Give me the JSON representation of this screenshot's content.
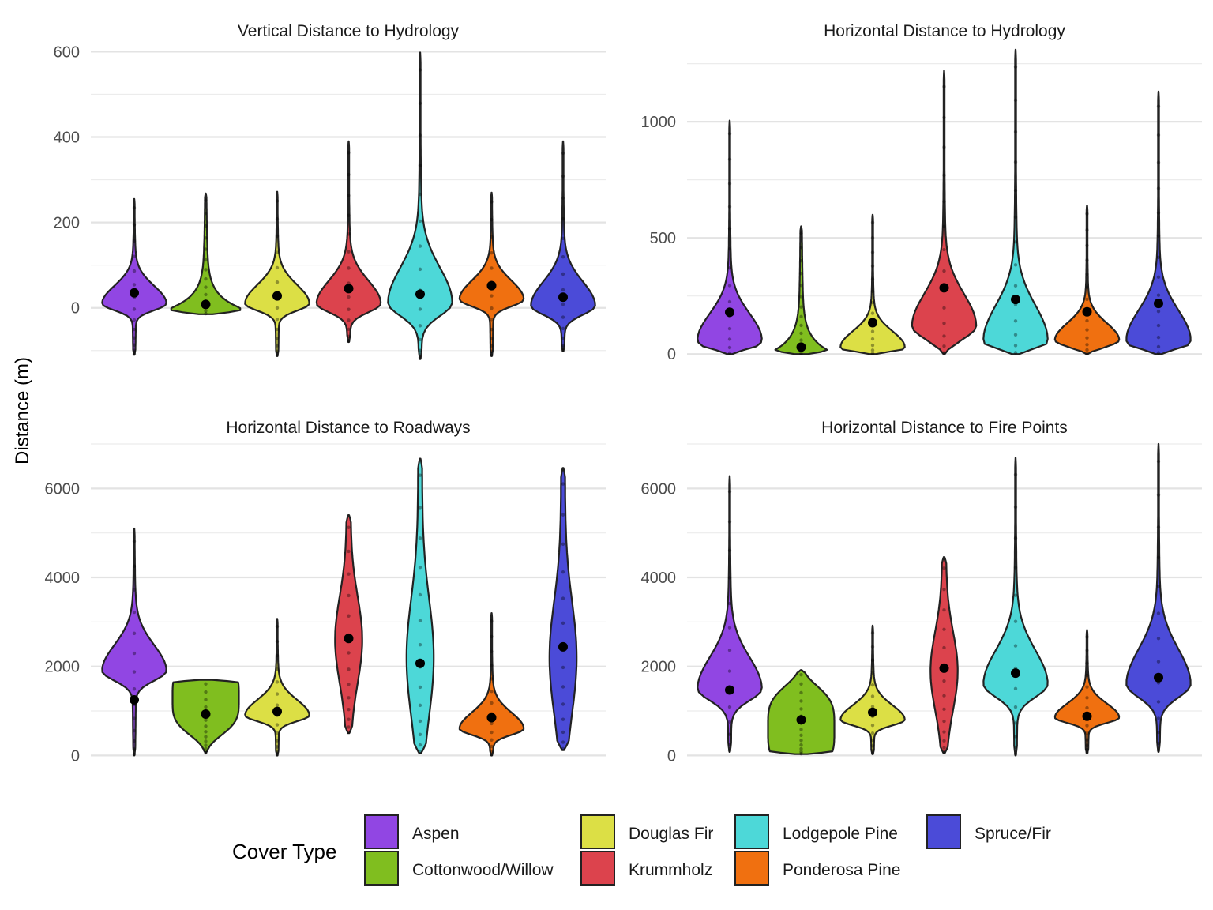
{
  "figure": {
    "y_axis_title": "Distance (m)",
    "legend_title": "Cover Type"
  },
  "legend": {
    "items": [
      {
        "name": "Aspen",
        "color": "#9146E3"
      },
      {
        "name": "Cottonwood/Willow",
        "color": "#80BE1F"
      },
      {
        "name": "Douglas Fir",
        "color": "#DCDF45"
      },
      {
        "name": "Krummholz",
        "color": "#DC434D"
      },
      {
        "name": "Lodgepole Pine",
        "color": "#4DD8D8"
      },
      {
        "name": "Ponderosa Pine",
        "color": "#F07010"
      },
      {
        "name": "Spruce/Fir",
        "color": "#4B4BD8"
      }
    ]
  },
  "chart_data": [
    {
      "type": "violin",
      "title": "Vertical Distance to Hydrology",
      "ylim": [
        -130,
        610
      ],
      "yticks": [
        0,
        200,
        400,
        600
      ],
      "grid": true,
      "categories": [
        "Aspen",
        "Cottonwood/Willow",
        "Douglas Fir",
        "Krummholz",
        "Lodgepole Pine",
        "Ponderosa Pine",
        "Spruce/Fir"
      ],
      "series": [
        {
          "name": "Aspen",
          "min": -110,
          "max": 255,
          "mean": 35,
          "peak": 10,
          "shape": "skew"
        },
        {
          "name": "Cottonwood/Willow",
          "min": -15,
          "max": 268,
          "mean": 8,
          "peak": 0,
          "shape": "flat"
        },
        {
          "name": "Douglas Fir",
          "min": -113,
          "max": 272,
          "mean": 28,
          "peak": 10,
          "shape": "skew"
        },
        {
          "name": "Krummholz",
          "min": -80,
          "max": 390,
          "mean": 45,
          "peak": 10,
          "shape": "skew"
        },
        {
          "name": "Lodgepole Pine",
          "min": -120,
          "max": 598,
          "mean": 32,
          "peak": 12,
          "shape": "skew"
        },
        {
          "name": "Ponderosa Pine",
          "min": -113,
          "max": 270,
          "mean": 52,
          "peak": 20,
          "shape": "skew"
        },
        {
          "name": "Spruce/Fir",
          "min": -102,
          "max": 390,
          "mean": 25,
          "peak": 5,
          "shape": "skew"
        }
      ]
    },
    {
      "type": "violin",
      "title": "Horizontal Distance to Hydrology",
      "ylim": [
        -40,
        1320
      ],
      "yticks": [
        0,
        500,
        1000
      ],
      "grid": true,
      "categories": [
        "Aspen",
        "Cottonwood/Willow",
        "Douglas Fir",
        "Krummholz",
        "Lodgepole Pine",
        "Ponderosa Pine",
        "Spruce/Fir"
      ],
      "series": [
        {
          "name": "Aspen",
          "min": 0,
          "max": 1005,
          "mean": 180,
          "peak": 60,
          "shape": "skew"
        },
        {
          "name": "Cottonwood/Willow",
          "min": 0,
          "max": 550,
          "mean": 30,
          "peak": 0,
          "shape": "flat"
        },
        {
          "name": "Douglas Fir",
          "min": 0,
          "max": 600,
          "mean": 135,
          "peak": 30,
          "shape": "skew"
        },
        {
          "name": "Krummholz",
          "min": 0,
          "max": 1220,
          "mean": 285,
          "peak": 120,
          "shape": "skew"
        },
        {
          "name": "Lodgepole Pine",
          "min": 0,
          "max": 1310,
          "mean": 235,
          "peak": 60,
          "shape": "skew"
        },
        {
          "name": "Ponderosa Pine",
          "min": 0,
          "max": 640,
          "mean": 182,
          "peak": 60,
          "shape": "skew"
        },
        {
          "name": "Spruce/Fir",
          "min": 0,
          "max": 1130,
          "mean": 218,
          "peak": 60,
          "shape": "skew"
        }
      ]
    },
    {
      "type": "violin",
      "title": "Horizontal Distance to Roadways",
      "ylim": [
        -100,
        7000
      ],
      "yticks": [
        0,
        2000,
        4000,
        6000
      ],
      "grid": true,
      "categories": [
        "Aspen",
        "Cottonwood/Willow",
        "Douglas Fir",
        "Krummholz",
        "Lodgepole Pine",
        "Ponderosa Pine",
        "Spruce/Fir"
      ],
      "series": [
        {
          "name": "Aspen",
          "min": 0,
          "max": 5100,
          "mean": 1250,
          "peak": 1900,
          "shape": "skew"
        },
        {
          "name": "Cottonwood/Willow",
          "min": 50,
          "max": 1700,
          "mean": 930,
          "peak": 1300,
          "shape": "round"
        },
        {
          "name": "Douglas Fir",
          "min": 0,
          "max": 3070,
          "mean": 990,
          "peak": 900,
          "shape": "skew"
        },
        {
          "name": "Krummholz",
          "min": 500,
          "max": 5400,
          "mean": 2630,
          "peak": 2600,
          "shape": "spindle"
        },
        {
          "name": "Lodgepole Pine",
          "min": 50,
          "max": 6670,
          "mean": 2070,
          "peak": 2200,
          "shape": "spindle"
        },
        {
          "name": "Ponderosa Pine",
          "min": 0,
          "max": 3200,
          "mean": 850,
          "peak": 600,
          "shape": "skew"
        },
        {
          "name": "Spruce/Fir",
          "min": 120,
          "max": 6460,
          "mean": 2440,
          "peak": 2200,
          "shape": "spindle"
        }
      ]
    },
    {
      "type": "violin",
      "title": "Horizontal Distance to Fire Points",
      "ylim": [
        -100,
        7000
      ],
      "yticks": [
        0,
        2000,
        4000,
        6000
      ],
      "grid": true,
      "categories": [
        "Aspen",
        "Cottonwood/Willow",
        "Douglas Fir",
        "Krummholz",
        "Lodgepole Pine",
        "Ponderosa Pine",
        "Spruce/Fir"
      ],
      "series": [
        {
          "name": "Aspen",
          "min": 80,
          "max": 6280,
          "mean": 1470,
          "peak": 1500,
          "shape": "skew"
        },
        {
          "name": "Cottonwood/Willow",
          "min": 30,
          "max": 1920,
          "mean": 800,
          "peak": 600,
          "shape": "round"
        },
        {
          "name": "Douglas Fir",
          "min": 30,
          "max": 2920,
          "mean": 970,
          "peak": 800,
          "shape": "skew"
        },
        {
          "name": "Krummholz",
          "min": 50,
          "max": 4460,
          "mean": 1960,
          "peak": 1900,
          "shape": "spindle"
        },
        {
          "name": "Lodgepole Pine",
          "min": 0,
          "max": 6690,
          "mean": 1850,
          "peak": 1600,
          "shape": "skew"
        },
        {
          "name": "Ponderosa Pine",
          "min": 50,
          "max": 2820,
          "mean": 880,
          "peak": 850,
          "shape": "skew"
        },
        {
          "name": "Spruce/Fir",
          "min": 80,
          "max": 7000,
          "mean": 1750,
          "peak": 1600,
          "shape": "skew"
        }
      ]
    }
  ]
}
